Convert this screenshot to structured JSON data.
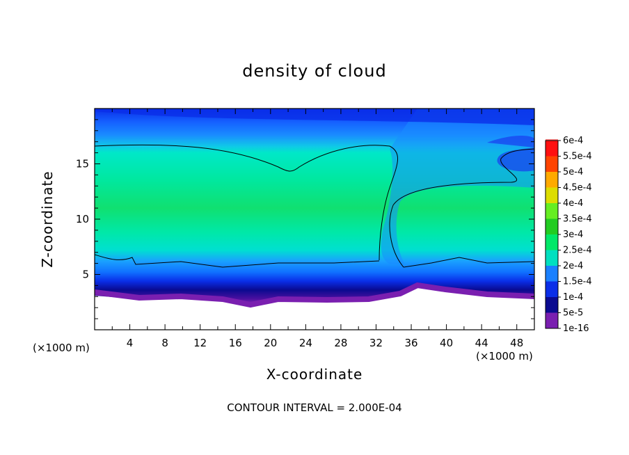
{
  "chart_data": {
    "type": "heatmap",
    "title": "density of cloud",
    "xlabel": "X-coordinate",
    "ylabel": "Z-coordinate",
    "x_unit_left": "(×1000 m)",
    "x_unit_right": "(×1000 m)",
    "note": "CONTOUR INTERVAL = 2.000E-04",
    "xlim": [
      0,
      50
    ],
    "ylim": [
      0,
      20
    ],
    "x_ticks": [
      "4",
      "8",
      "12",
      "16",
      "20",
      "24",
      "28",
      "32",
      "36",
      "40",
      "44",
      "48"
    ],
    "y_ticks": [
      "5",
      "10",
      "15"
    ],
    "colorbar_labels": [
      "1e-16",
      "5e-5",
      "1e-4",
      "1.5e-4",
      "2e-4",
      "2.5e-4",
      "3e-4",
      "3.5e-4",
      "4e-4",
      "4.5e-4",
      "5e-4",
      "5.5e-4",
      "6e-4"
    ],
    "colorbar_colors": [
      "#7a1fb0",
      "#0a0a90",
      "#0a2ee8",
      "#1a80ff",
      "#00e0c0",
      "#00e868",
      "#22cc22",
      "#66ee22",
      "#dddd00",
      "#ffaa00",
      "#ff4400",
      "#ff1010",
      "#ff8080"
    ],
    "contour_level": "2e-4",
    "cloud_layer": {
      "cloud_base_z": 2.5,
      "dense_region_base_z": 6.3,
      "dense_region_top_z": 16.5,
      "updraft_x": 33
    }
  }
}
